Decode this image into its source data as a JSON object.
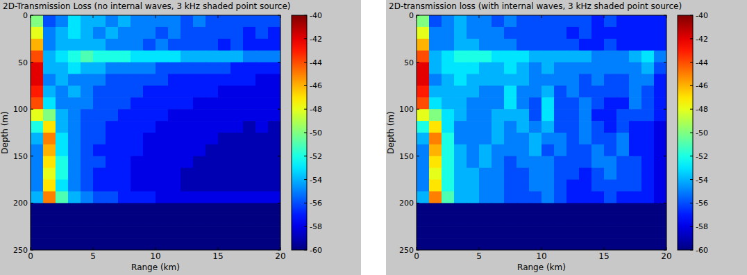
{
  "chart_data": [
    {
      "type": "heatmap",
      "title": "2D-Transmission Loss (no internal waves, 3 kHz shaded point source)",
      "x_label": "Range (km)",
      "y_label": "Depth (m)",
      "xlim": [
        0,
        20
      ],
      "ylim": [
        0,
        250
      ],
      "xticks": [
        0,
        5,
        10,
        15,
        20
      ],
      "yticks": [
        0,
        50,
        100,
        150,
        200,
        250
      ],
      "color_range": [
        -60,
        -40
      ],
      "color_ticks": [
        -40,
        -42,
        -44,
        -46,
        -48,
        -50,
        -52,
        -54,
        -56,
        -58,
        -60
      ],
      "cells": [
        [
          -50,
          -56,
          -55,
          -53,
          -54,
          -54,
          -55,
          -54,
          -55,
          -55,
          -55,
          -55,
          -56,
          -55,
          -56,
          -56,
          -56,
          -56,
          -56,
          -56
        ],
        [
          -48,
          -55,
          -54,
          -53,
          -54,
          -55,
          -54,
          -55,
          -55,
          -55,
          -56,
          -55,
          -56,
          -56,
          -56,
          -56,
          -56,
          -57,
          -56,
          -57
        ],
        [
          -46,
          -55,
          -54,
          -54,
          -54,
          -54,
          -55,
          -55,
          -55,
          -56,
          -55,
          -56,
          -56,
          -56,
          -56,
          -57,
          -56,
          -57,
          -57,
          -57
        ],
        [
          -44,
          -54,
          -53,
          -52,
          -51,
          -52,
          -52,
          -52,
          -53,
          -53,
          -53,
          -53,
          -54,
          -54,
          -54,
          -54,
          -54,
          -55,
          -55,
          -55
        ],
        [
          -42,
          -54,
          -54,
          -53,
          -54,
          -54,
          -55,
          -55,
          -55,
          -55,
          -56,
          -56,
          -56,
          -56,
          -56,
          -56,
          -57,
          -57,
          -57,
          -57
        ],
        [
          -42,
          -55,
          -54,
          -55,
          -55,
          -55,
          -56,
          -56,
          -56,
          -56,
          -56,
          -57,
          -57,
          -57,
          -57,
          -57,
          -57,
          -57,
          -58,
          -58
        ],
        [
          -43,
          -54,
          -55,
          -54,
          -55,
          -56,
          -56,
          -56,
          -56,
          -57,
          -57,
          -57,
          -57,
          -57,
          -57,
          -58,
          -58,
          -58,
          -58,
          -58
        ],
        [
          -44,
          -53,
          -55,
          -55,
          -55,
          -56,
          -56,
          -56,
          -57,
          -57,
          -57,
          -57,
          -57,
          -58,
          -58,
          -58,
          -58,
          -58,
          -58,
          -58
        ],
        [
          -48,
          -50,
          -54,
          -55,
          -56,
          -56,
          -56,
          -57,
          -57,
          -57,
          -57,
          -58,
          -58,
          -58,
          -58,
          -58,
          -58,
          -58,
          -58,
          -58
        ],
        [
          -52,
          -47,
          -54,
          -55,
          -56,
          -56,
          -57,
          -57,
          -57,
          -57,
          -58,
          -58,
          -58,
          -58,
          -58,
          -58,
          -58,
          -59,
          -58,
          -59
        ],
        [
          -54,
          -45,
          -53,
          -55,
          -56,
          -56,
          -57,
          -57,
          -57,
          -58,
          -58,
          -58,
          -58,
          -58,
          -58,
          -59,
          -59,
          -59,
          -59,
          -59
        ],
        [
          -55,
          -46,
          -53,
          -55,
          -56,
          -57,
          -57,
          -57,
          -57,
          -58,
          -58,
          -58,
          -58,
          -58,
          -59,
          -59,
          -59,
          -59,
          -59,
          -59
        ],
        [
          -55,
          -47,
          -52,
          -55,
          -56,
          -56,
          -57,
          -57,
          -58,
          -58,
          -58,
          -58,
          -58,
          -59,
          -59,
          -59,
          -59,
          -59,
          -59,
          -59
        ],
        [
          -55,
          -48,
          -52,
          -55,
          -56,
          -57,
          -57,
          -57,
          -58,
          -58,
          -58,
          -58,
          -59,
          -59,
          -59,
          -59,
          -59,
          -59,
          -59,
          -59
        ],
        [
          -55,
          -47,
          -53,
          -55,
          -56,
          -57,
          -57,
          -57,
          -58,
          -58,
          -58,
          -58,
          -59,
          -59,
          -59,
          -59,
          -59,
          -59,
          -59,
          -59
        ],
        [
          -54,
          -45,
          -51,
          -54,
          -55,
          -56,
          -56,
          -57,
          -57,
          -57,
          -58,
          -58,
          -58,
          -58,
          -58,
          -58,
          -58,
          -58,
          -58,
          -58
        ],
        [
          -60,
          -60,
          -60,
          -60,
          -60,
          -60,
          -60,
          -60,
          -60,
          -60,
          -60,
          -60,
          -60,
          -60,
          -60,
          -60,
          -60,
          -60,
          -60,
          -60
        ],
        [
          -60,
          -60,
          -60,
          -60,
          -60,
          -60,
          -60,
          -60,
          -60,
          -60,
          -60,
          -60,
          -60,
          -60,
          -60,
          -60,
          -60,
          -60,
          -60,
          -60
        ],
        [
          -60,
          -60,
          -60,
          -60,
          -60,
          -60,
          -60,
          -60,
          -60,
          -60,
          -60,
          -60,
          -60,
          -60,
          -60,
          -60,
          -60,
          -60,
          -60,
          -60
        ],
        [
          -60,
          -60,
          -60,
          -60,
          -60,
          -60,
          -60,
          -60,
          -60,
          -60,
          -60,
          -60,
          -60,
          -60,
          -60,
          -60,
          -60,
          -60,
          -60,
          -60
        ]
      ]
    },
    {
      "type": "heatmap",
      "title": "2D-transmission loss (with internal waves, 3 kHz shaded point source)",
      "x_label": "Range (km)",
      "y_label": "Depth (m)",
      "xlim": [
        0,
        20
      ],
      "ylim": [
        0,
        250
      ],
      "xticks": [
        0,
        5,
        10,
        15,
        20
      ],
      "yticks": [
        0,
        50,
        100,
        150,
        200,
        250
      ],
      "color_range": [
        -60,
        -40
      ],
      "color_ticks": [
        -40,
        -42,
        -44,
        -46,
        -48,
        -50,
        -52,
        -54,
        -56,
        -58,
        -60
      ],
      "cells": [
        [
          -50,
          -56,
          -55,
          -54,
          -55,
          -55,
          -56,
          -55,
          -56,
          -56,
          -56,
          -56,
          -56,
          -56,
          -57,
          -56,
          -57,
          -57,
          -57,
          -57
        ],
        [
          -48,
          -55,
          -55,
          -54,
          -55,
          -55,
          -55,
          -56,
          -56,
          -56,
          -56,
          -56,
          -57,
          -56,
          -57,
          -57,
          -57,
          -57,
          -57,
          -57
        ],
        [
          -46,
          -55,
          -55,
          -54,
          -54,
          -55,
          -55,
          -55,
          -56,
          -56,
          -56,
          -56,
          -56,
          -57,
          -57,
          -56,
          -57,
          -57,
          -57,
          -57
        ],
        [
          -44,
          -54,
          -53,
          -52,
          -52,
          -52,
          -53,
          -53,
          -53,
          -54,
          -54,
          -54,
          -54,
          -54,
          -55,
          -55,
          -55,
          -54,
          -53,
          -55
        ],
        [
          -42,
          -54,
          -53,
          -53,
          -53,
          -54,
          -54,
          -53,
          -54,
          -55,
          -54,
          -55,
          -55,
          -55,
          -55,
          -55,
          -55,
          -55,
          -54,
          -56
        ],
        [
          -42,
          -55,
          -54,
          -53,
          -54,
          -54,
          -54,
          -54,
          -54,
          -55,
          -55,
          -55,
          -55,
          -56,
          -55,
          -56,
          -56,
          -55,
          -55,
          -57
        ],
        [
          -43,
          -54,
          -54,
          -54,
          -54,
          -55,
          -55,
          -53,
          -55,
          -55,
          -54,
          -56,
          -55,
          -56,
          -56,
          -56,
          -56,
          -55,
          -56,
          -57
        ],
        [
          -44,
          -53,
          -54,
          -54,
          -55,
          -55,
          -55,
          -53,
          -55,
          -56,
          -53,
          -56,
          -56,
          -55,
          -56,
          -57,
          -57,
          -55,
          -56,
          -57
        ],
        [
          -48,
          -50,
          -53,
          -54,
          -55,
          -55,
          -54,
          -54,
          -54,
          -56,
          -53,
          -56,
          -56,
          -55,
          -57,
          -57,
          -56,
          -56,
          -56,
          -57
        ],
        [
          -52,
          -47,
          -53,
          -55,
          -55,
          -55,
          -54,
          -55,
          -54,
          -55,
          -54,
          -56,
          -56,
          -55,
          -56,
          -57,
          -56,
          -57,
          -57,
          -58
        ],
        [
          -54,
          -45,
          -52,
          -55,
          -55,
          -55,
          -54,
          -55,
          -55,
          -54,
          -55,
          -55,
          -56,
          -55,
          -56,
          -56,
          -55,
          -57,
          -57,
          -58
        ],
        [
          -55,
          -46,
          -52,
          -54,
          -55,
          -54,
          -55,
          -55,
          -55,
          -54,
          -56,
          -55,
          -56,
          -56,
          -55,
          -56,
          -55,
          -57,
          -57,
          -58
        ],
        [
          -55,
          -47,
          -52,
          -54,
          -55,
          -54,
          -55,
          -56,
          -55,
          -55,
          -55,
          -56,
          -56,
          -56,
          -55,
          -55,
          -56,
          -56,
          -57,
          -58
        ],
        [
          -55,
          -48,
          -52,
          -54,
          -54,
          -55,
          -55,
          -56,
          -56,
          -55,
          -55,
          -56,
          -56,
          -57,
          -56,
          -55,
          -56,
          -56,
          -57,
          -58
        ],
        [
          -55,
          -47,
          -52,
          -54,
          -54,
          -55,
          -55,
          -56,
          -56,
          -55,
          -55,
          -56,
          -57,
          -57,
          -56,
          -56,
          -56,
          -56,
          -57,
          -58
        ],
        [
          -54,
          -45,
          -51,
          -54,
          -54,
          -55,
          -55,
          -56,
          -56,
          -56,
          -55,
          -56,
          -57,
          -57,
          -57,
          -56,
          -57,
          -57,
          -57,
          -58
        ],
        [
          -60,
          -60,
          -60,
          -60,
          -60,
          -60,
          -60,
          -60,
          -60,
          -60,
          -60,
          -60,
          -60,
          -60,
          -60,
          -60,
          -60,
          -60,
          -60,
          -60
        ],
        [
          -60,
          -60,
          -60,
          -60,
          -60,
          -60,
          -60,
          -60,
          -60,
          -60,
          -60,
          -60,
          -60,
          -60,
          -60,
          -60,
          -60,
          -60,
          -60,
          -60
        ],
        [
          -60,
          -60,
          -60,
          -60,
          -60,
          -60,
          -60,
          -60,
          -60,
          -60,
          -60,
          -60,
          -60,
          -60,
          -60,
          -60,
          -60,
          -60,
          -60,
          -60
        ],
        [
          -60,
          -60,
          -60,
          -60,
          -60,
          -60,
          -60,
          -60,
          -60,
          -60,
          -60,
          -60,
          -60,
          -60,
          -60,
          -60,
          -60,
          -60,
          -60,
          -60
        ]
      ]
    }
  ]
}
